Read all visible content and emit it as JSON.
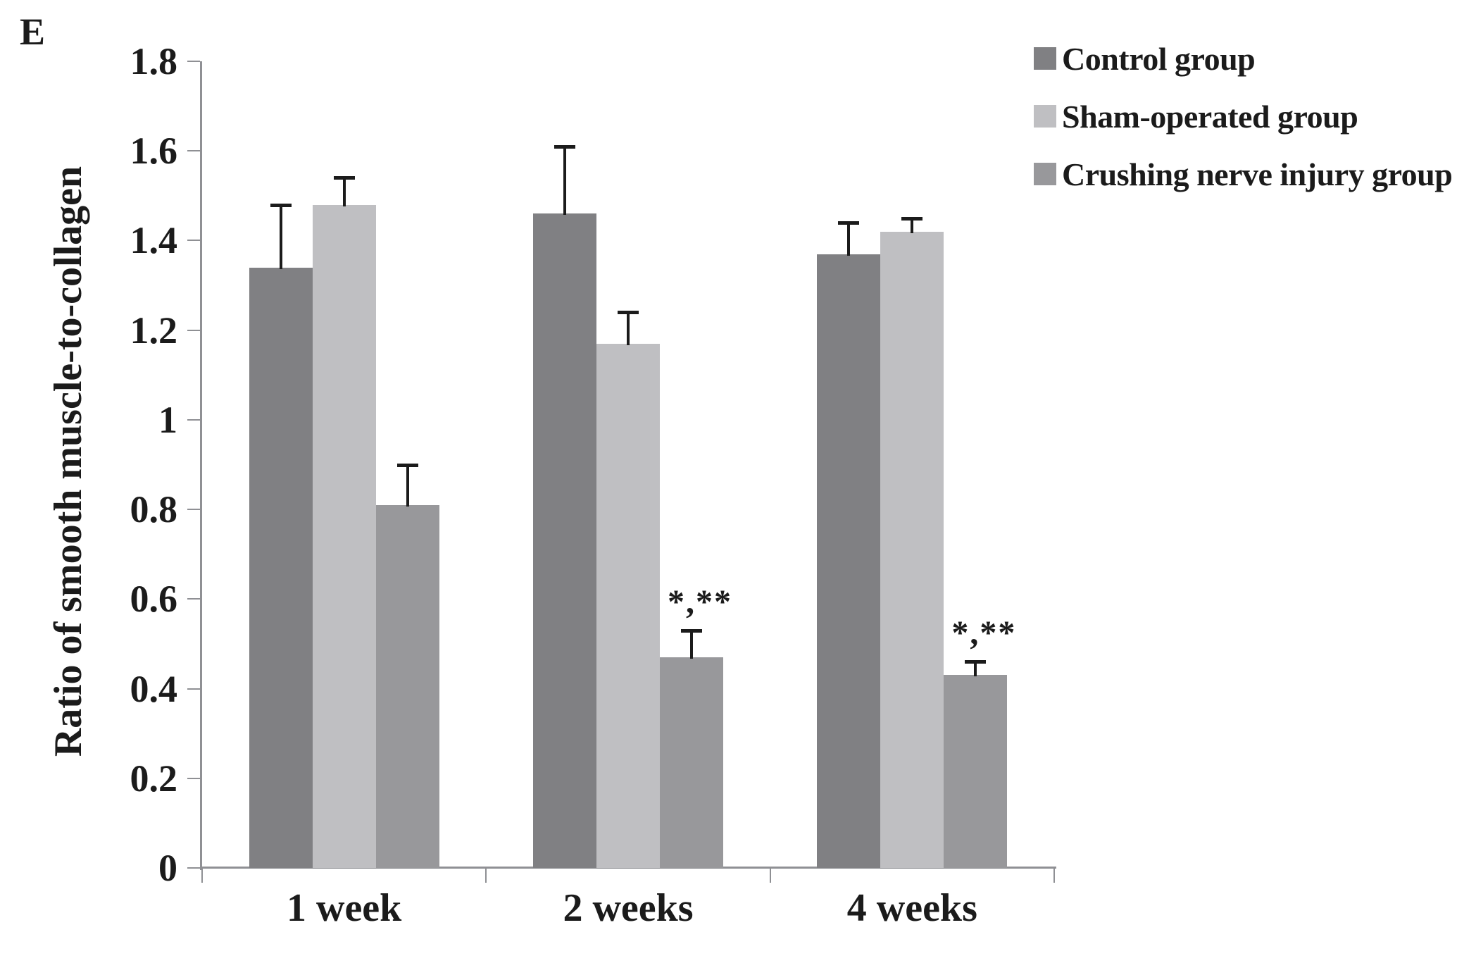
{
  "panel_label": "E",
  "colors": {
    "control": "#808083",
    "sham": "#bfbfc2",
    "crush": "#98989b",
    "axis": "#8f9094",
    "error_bar": "#1b1b1b",
    "text": "#1b1b1b",
    "background": "#ffffff"
  },
  "chart_data": {
    "type": "bar",
    "title": "",
    "xlabel": "",
    "ylabel": "Ratio of smooth muscle-to-collagen",
    "categories": [
      "1 week",
      "2 weeks",
      "4 weeks"
    ],
    "series": [
      {
        "name": "Control group",
        "color": "#808083",
        "values": [
          1.34,
          1.46,
          1.37
        ],
        "errors_up": [
          0.14,
          0.15,
          0.07
        ]
      },
      {
        "name": "Sham-operated group",
        "color": "#bfbfc2",
        "values": [
          1.48,
          1.17,
          1.42
        ],
        "errors_up": [
          0.06,
          0.07,
          0.03
        ]
      },
      {
        "name": "Crushing nerve injury group",
        "color": "#98989b",
        "values": [
          0.81,
          0.47,
          0.43
        ],
        "errors_up": [
          0.09,
          0.06,
          0.03
        ]
      }
    ],
    "annotations": [
      {
        "text": "*,**",
        "category_index": 1,
        "series_index": 2
      },
      {
        "text": "*,**",
        "category_index": 2,
        "series_index": 2
      }
    ],
    "ylim": [
      0,
      1.8
    ],
    "ytick_step": 0.2,
    "ytick_labels": [
      "0",
      "0.2",
      "0.4",
      "0.6",
      "0.8",
      "1",
      "1.2",
      "1.4",
      "1.6",
      "1.8"
    ],
    "grid": false,
    "legend_position": "top-right",
    "error_bars": "upper-only"
  }
}
